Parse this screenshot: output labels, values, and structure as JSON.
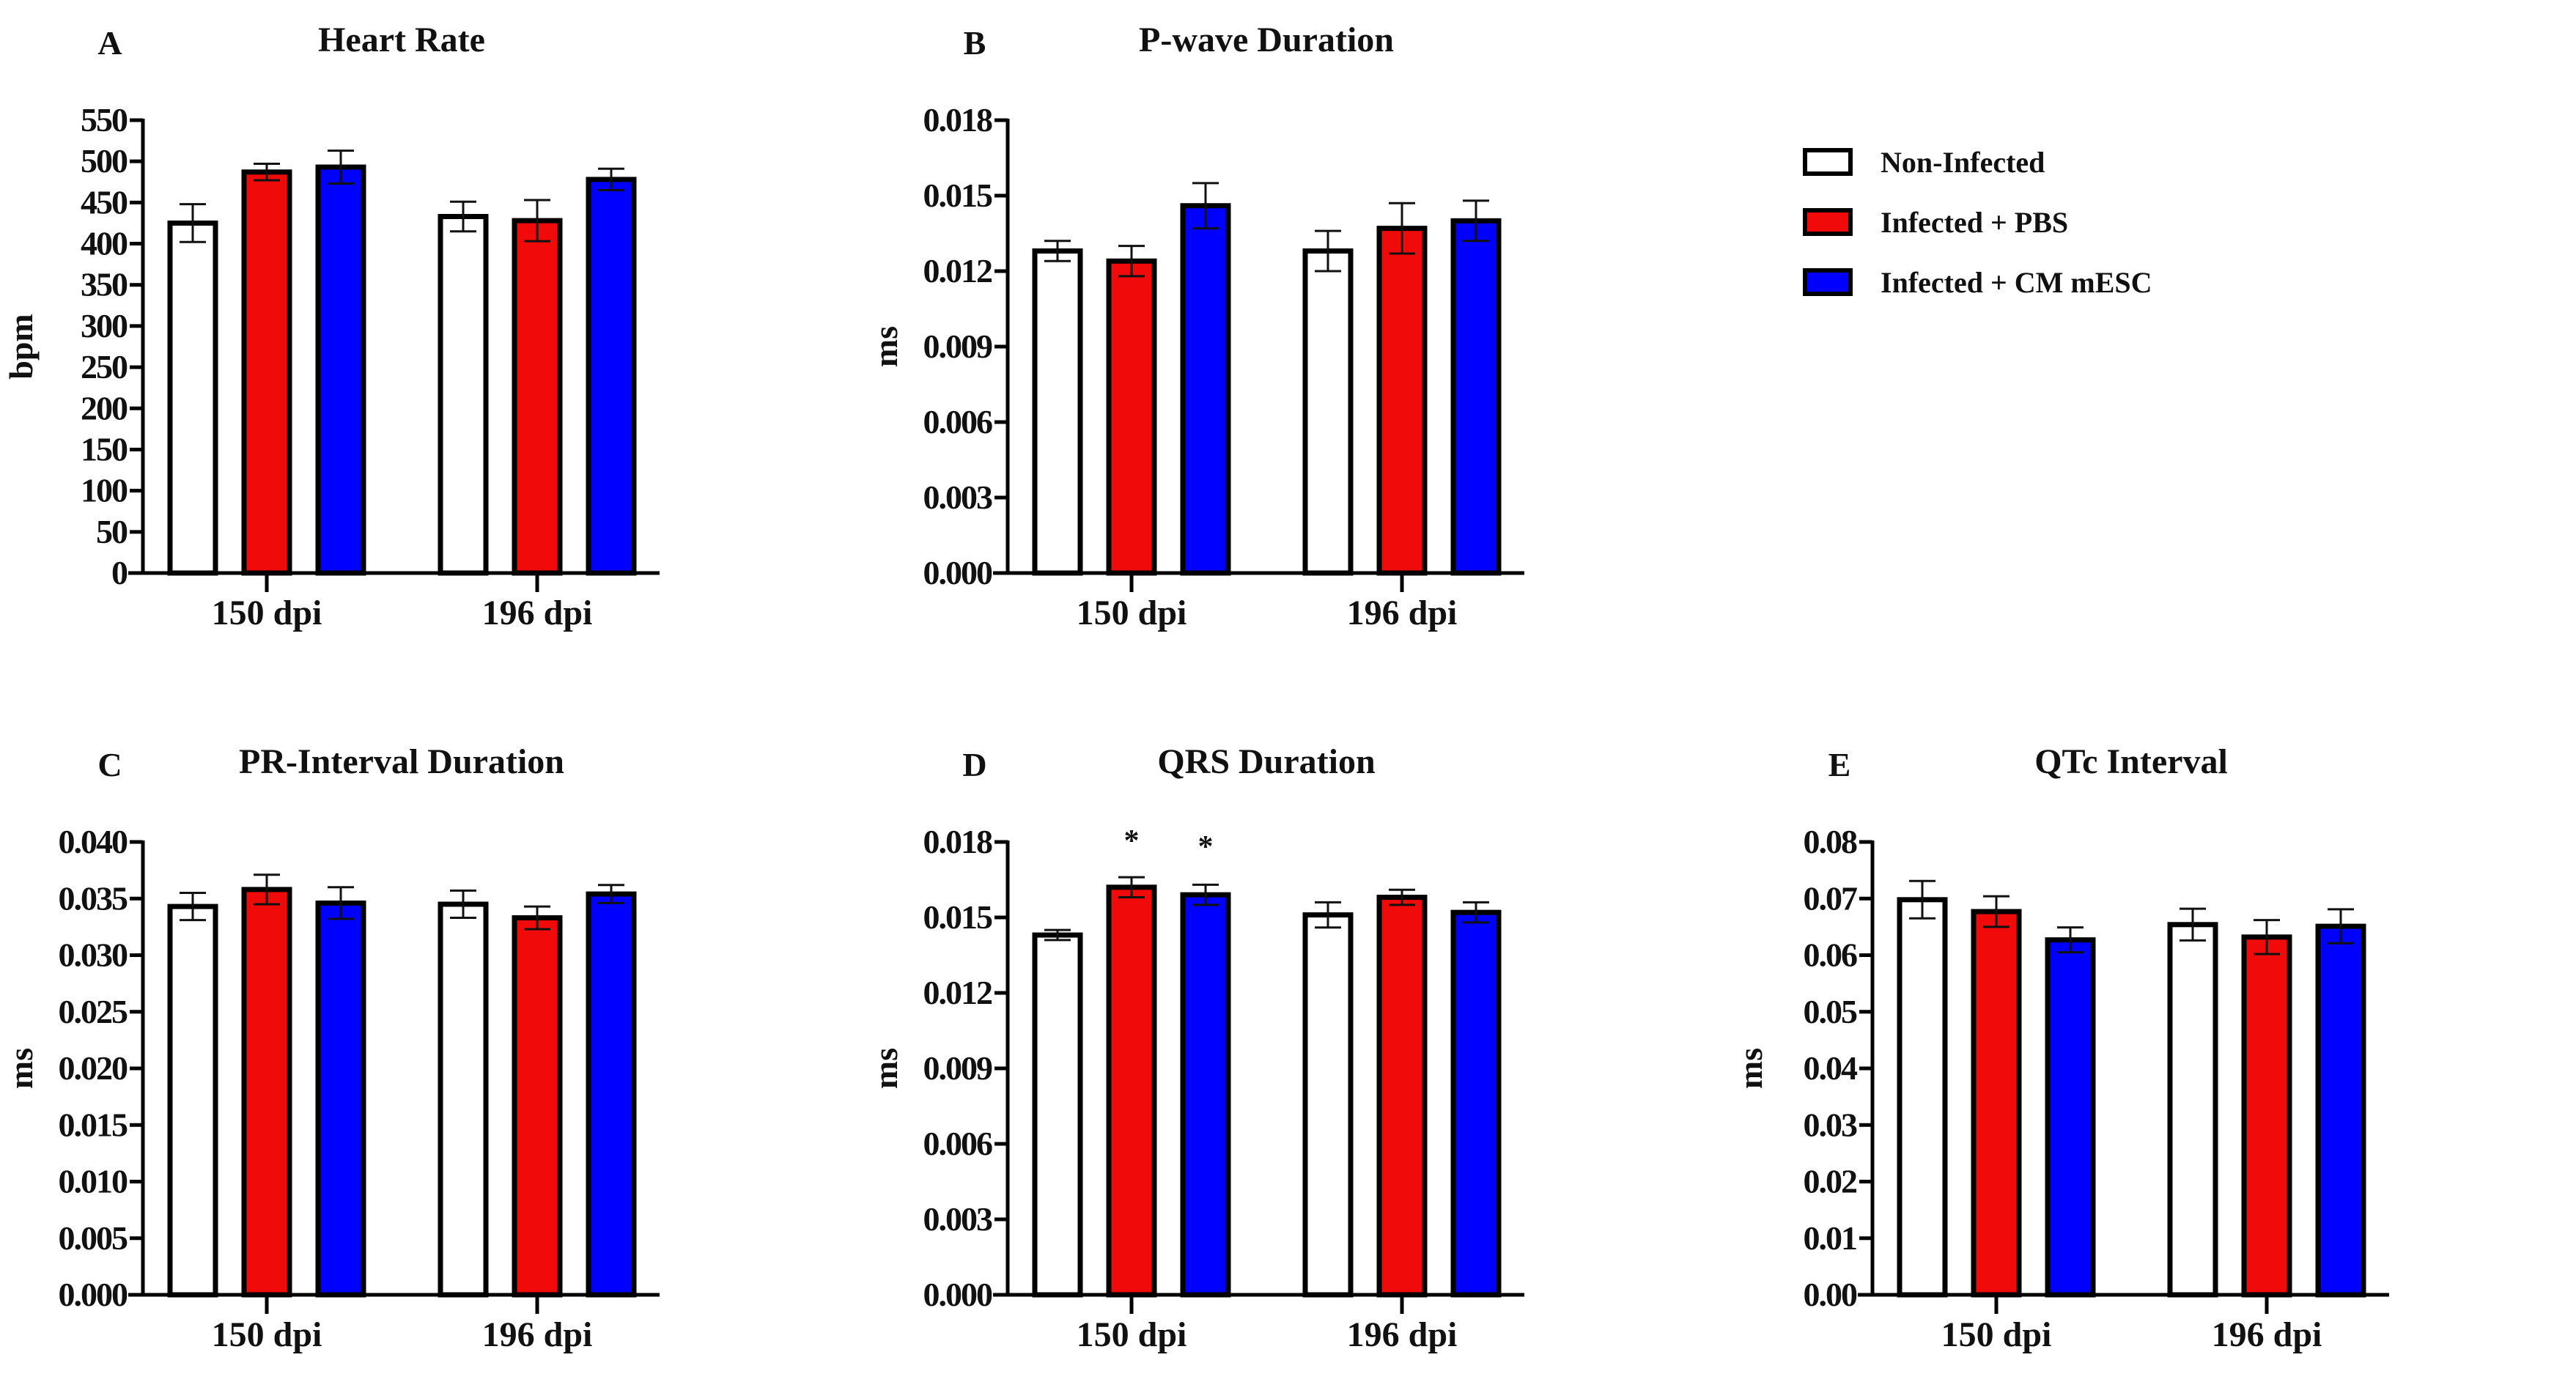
{
  "legend": [
    {
      "label": "Non-Infected",
      "color": "#ffffff"
    },
    {
      "label": "Infected + PBS",
      "color": "#f00a0a"
    },
    {
      "label": "Infected + CM mESC",
      "color": "#0000ff"
    }
  ],
  "chart_data": [
    {
      "panel": "A",
      "type": "bar",
      "title": "Heart Rate",
      "ylabel": "bpm",
      "xlabel": "",
      "categories": [
        "150 dpi",
        "196 dpi"
      ],
      "ylim": [
        0,
        550
      ],
      "yticks": [
        0,
        50,
        100,
        150,
        200,
        250,
        300,
        350,
        400,
        450,
        500,
        550
      ],
      "ytick_labels": [
        "0",
        "50",
        "100",
        "150",
        "200",
        "250",
        "300",
        "350",
        "400",
        "450",
        "500",
        "550"
      ],
      "series": [
        {
          "name": "Non-Infected",
          "values": [
            425,
            433
          ],
          "errors": [
            23,
            18
          ]
        },
        {
          "name": "Infected + PBS",
          "values": [
            487,
            428
          ],
          "errors": [
            10,
            25
          ]
        },
        {
          "name": "Infected + CM mESC",
          "values": [
            493,
            478
          ],
          "errors": [
            20,
            13
          ]
        }
      ],
      "annotations": []
    },
    {
      "panel": "B",
      "type": "bar",
      "title": "P-wave Duration",
      "ylabel": "ms",
      "xlabel": "",
      "categories": [
        "150 dpi",
        "196 dpi"
      ],
      "ylim": [
        0,
        0.018
      ],
      "yticks": [
        0,
        0.003,
        0.006,
        0.009,
        0.012,
        0.015,
        0.018
      ],
      "ytick_labels": [
        "0.000",
        "0.003",
        "0.006",
        "0.009",
        "0.012",
        "0.015",
        "0.018"
      ],
      "series": [
        {
          "name": "Non-Infected",
          "values": [
            0.0128,
            0.0128
          ],
          "errors": [
            0.0004,
            0.0008
          ]
        },
        {
          "name": "Infected + PBS",
          "values": [
            0.0124,
            0.0137
          ],
          "errors": [
            0.0006,
            0.001
          ]
        },
        {
          "name": "Infected + CM mESC",
          "values": [
            0.0146,
            0.014
          ],
          "errors": [
            0.0009,
            0.0008
          ]
        }
      ],
      "annotations": []
    },
    {
      "panel": "C",
      "type": "bar",
      "title": "PR-Interval Duration",
      "ylabel": "ms",
      "xlabel": "",
      "categories": [
        "150 dpi",
        "196 dpi"
      ],
      "ylim": [
        0,
        0.04
      ],
      "yticks": [
        0,
        0.005,
        0.01,
        0.015,
        0.02,
        0.025,
        0.03,
        0.035,
        0.04
      ],
      "ytick_labels": [
        "0.000",
        "0.005",
        "0.010",
        "0.015",
        "0.020",
        "0.025",
        "0.030",
        "0.035",
        "0.040"
      ],
      "series": [
        {
          "name": "Non-Infected",
          "values": [
            0.0343,
            0.0345
          ],
          "errors": [
            0.0012,
            0.0012
          ]
        },
        {
          "name": "Infected + PBS",
          "values": [
            0.0358,
            0.0333
          ],
          "errors": [
            0.0013,
            0.001
          ]
        },
        {
          "name": "Infected + CM mESC",
          "values": [
            0.0346,
            0.0354
          ],
          "errors": [
            0.0014,
            0.0008
          ]
        }
      ],
      "annotations": []
    },
    {
      "panel": "D",
      "type": "bar",
      "title": "QRS Duration",
      "ylabel": "ms",
      "xlabel": "",
      "categories": [
        "150 dpi",
        "196 dpi"
      ],
      "ylim": [
        0,
        0.018
      ],
      "yticks": [
        0,
        0.003,
        0.006,
        0.009,
        0.012,
        0.015,
        0.018
      ],
      "ytick_labels": [
        "0.000",
        "0.003",
        "0.006",
        "0.009",
        "0.012",
        "0.015",
        "0.018"
      ],
      "series": [
        {
          "name": "Non-Infected",
          "values": [
            0.0143,
            0.0151
          ],
          "errors": [
            0.0002,
            0.0005
          ]
        },
        {
          "name": "Infected + PBS",
          "values": [
            0.0162,
            0.0158
          ],
          "errors": [
            0.0004,
            0.0003
          ]
        },
        {
          "name": "Infected + CM mESC",
          "values": [
            0.0159,
            0.0152
          ],
          "errors": [
            0.0004,
            0.0004
          ]
        }
      ],
      "annotations": [
        {
          "text": "*",
          "category": "150 dpi",
          "series": "Infected + PBS"
        },
        {
          "text": "*",
          "category": "150 dpi",
          "series": "Infected + CM mESC"
        }
      ]
    },
    {
      "panel": "E",
      "type": "bar",
      "title": "QTc Interval",
      "ylabel": "ms",
      "xlabel": "",
      "categories": [
        "150 dpi",
        "196 dpi"
      ],
      "ylim": [
        0,
        0.08
      ],
      "yticks": [
        0,
        0.01,
        0.02,
        0.03,
        0.04,
        0.05,
        0.06,
        0.07,
        0.08
      ],
      "ytick_labels": [
        "0.00",
        "0.01",
        "0.02",
        "0.03",
        "0.04",
        "0.05",
        "0.06",
        "0.07",
        "0.08"
      ],
      "series": [
        {
          "name": "Non-Infected",
          "values": [
            0.0698,
            0.0654
          ],
          "errors": [
            0.0033,
            0.0028
          ]
        },
        {
          "name": "Infected + PBS",
          "values": [
            0.0677,
            0.0632
          ],
          "errors": [
            0.0027,
            0.003
          ]
        },
        {
          "name": "Infected + CM mESC",
          "values": [
            0.0627,
            0.0651
          ],
          "errors": [
            0.0022,
            0.003
          ]
        }
      ],
      "annotations": []
    }
  ]
}
